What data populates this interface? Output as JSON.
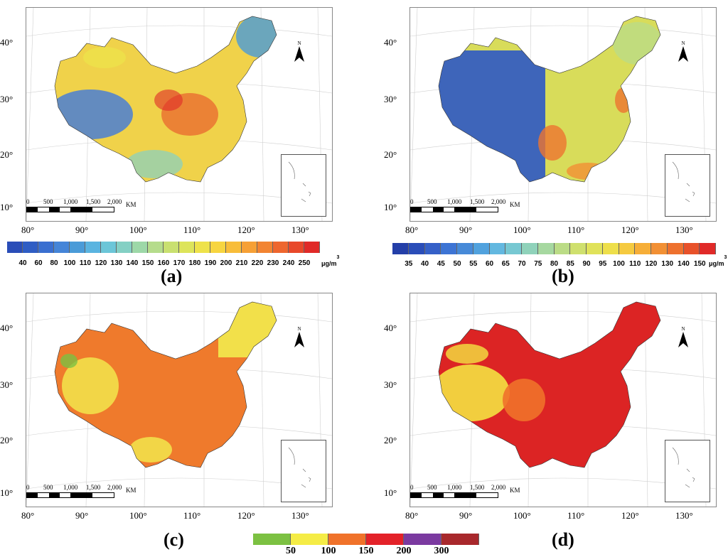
{
  "panels": {
    "a": {
      "label": "(a)"
    },
    "b": {
      "label": "(b)"
    },
    "c": {
      "label": "(c)"
    },
    "d": {
      "label": "(d)"
    }
  },
  "axes": {
    "latitude_ticks": [
      "40°",
      "30°",
      "20°",
      "10°"
    ],
    "longitude_ticks": [
      "80°",
      "90°",
      "100°",
      "110°",
      "120°",
      "130°"
    ]
  },
  "north_arrow": {
    "label": "N",
    "icon": "north-arrow-icon"
  },
  "scale_bar": {
    "ticks": [
      "0",
      "500",
      "1,000",
      "1,500",
      "2,000"
    ],
    "unit": "KM"
  },
  "colorbar_a": {
    "values": [
      "40",
      "60",
      "80",
      "100",
      "110",
      "120",
      "130",
      "140",
      "150",
      "160",
      "170",
      "180",
      "190",
      "200",
      "210",
      "220",
      "230",
      "240",
      "250"
    ],
    "colors": [
      "#2a4db8",
      "#2f5dc4",
      "#3a6fd0",
      "#4585d8",
      "#4a9bd8",
      "#5ab4e0",
      "#6cc6d8",
      "#84d0c4",
      "#9dd8a8",
      "#b5dc8c",
      "#c9e070",
      "#dde45a",
      "#eee24a",
      "#f7d540",
      "#f8bd3a",
      "#f6a036",
      "#f28432",
      "#ee662e",
      "#e8482a",
      "#e02a28"
    ],
    "unit": "μg/m",
    "unit_sup": "3"
  },
  "colorbar_b": {
    "values": [
      "35",
      "40",
      "45",
      "50",
      "55",
      "60",
      "65",
      "70",
      "75",
      "80",
      "85",
      "90",
      "95",
      "100",
      "110",
      "120",
      "130",
      "140",
      "150"
    ],
    "colors": [
      "#243fa8",
      "#2a4db8",
      "#3560c8",
      "#3d74d4",
      "#478ad8",
      "#51a2de",
      "#63b8e0",
      "#77c8d2",
      "#8fd2ba",
      "#a6d8a0",
      "#bbdc86",
      "#cfe06e",
      "#e0e25a",
      "#eedf4a",
      "#f5ca40",
      "#f6ae38",
      "#f29034",
      "#ee712e",
      "#e8512a",
      "#e02a28"
    ],
    "unit": "μg/m",
    "unit_sup": "3"
  },
  "legend_cd": {
    "values": [
      "50",
      "100",
      "150",
      "200",
      "300"
    ],
    "colors": [
      "#7cc142",
      "#f5ec46",
      "#f0722a",
      "#e32229",
      "#7b3aa0",
      "#a8282c"
    ]
  },
  "colors": {
    "a_main": "#f0d24a",
    "a_high": "#e8602c",
    "a_low": "#4a7fd4",
    "b_main": "#d8dc5a",
    "b_high": "#ee7430",
    "b_low": "#2e58c4",
    "c_main": "#ef7a2c",
    "c_low": "#f2e04a",
    "d_main": "#dc2424",
    "d_low": "#f2d840"
  }
}
